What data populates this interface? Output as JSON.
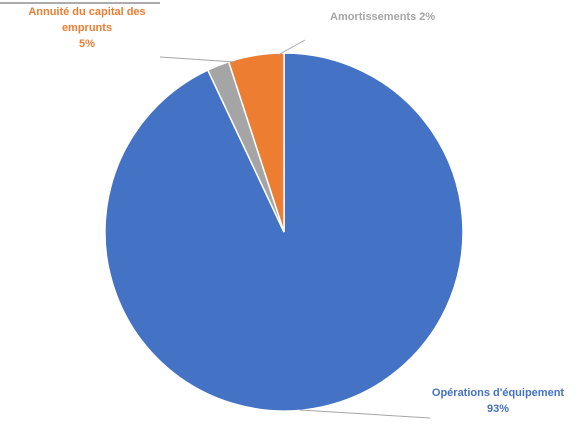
{
  "chart_data": {
    "type": "pie",
    "title": "",
    "legend": "none",
    "slices": [
      {
        "name": "Opérations d'équipement",
        "value": 93,
        "label": "Opérations d'équipement 93%",
        "color": "#4472C4"
      },
      {
        "name": "Amortissements",
        "value": 2,
        "label": "Amortissements 2%",
        "color": "#A5A5A5"
      },
      {
        "name": "Annuité du capital des emprunts",
        "value": 5,
        "label": "Annuité du capital des emprunts 5%",
        "color": "#ED7D31"
      }
    ]
  }
}
